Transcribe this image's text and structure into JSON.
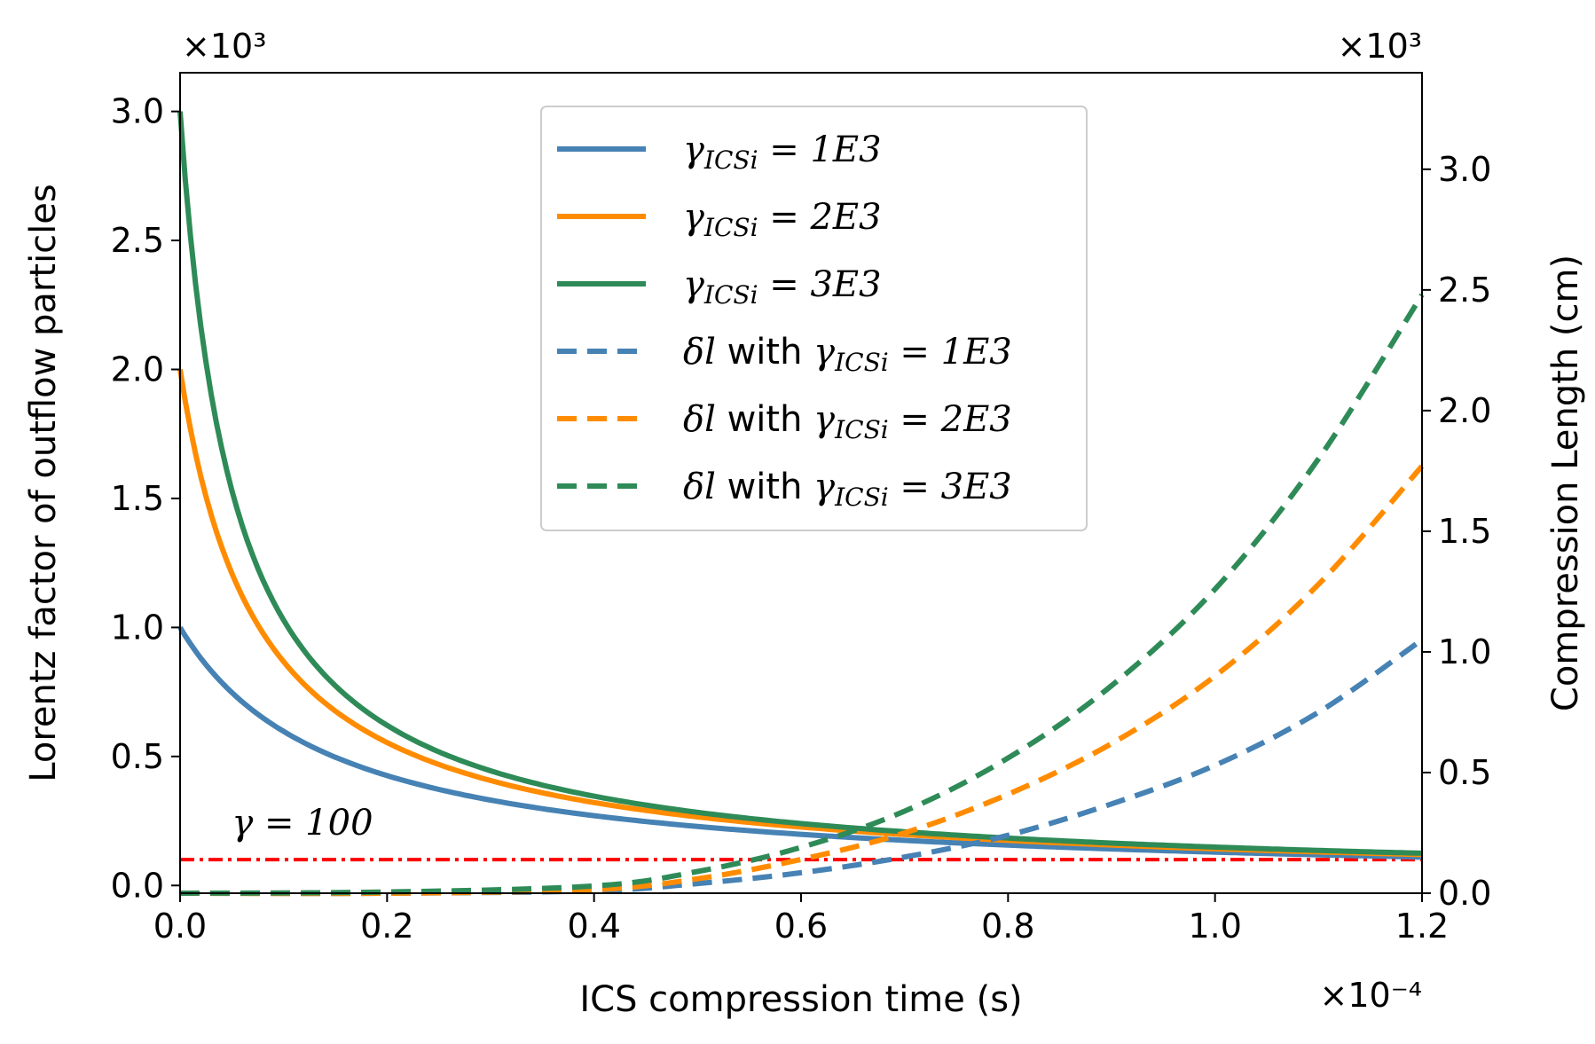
{
  "chart_data": {
    "type": "line",
    "xlabel": "ICS compression time (s)",
    "ylabel_left": "Lorentz factor of outflow particles",
    "ylabel_right": "Compression Length (cm)",
    "x_multiplier": "×10⁻⁴",
    "y_left_multiplier": "×10³",
    "y_right_multiplier": "×10³",
    "xlim": [
      0,
      1.2
    ],
    "ylim_left": [
      -0.03,
      3.15
    ],
    "ylim_right": [
      0,
      3.4
    ],
    "x_ticks": [
      "0.0",
      "0.2",
      "0.4",
      "0.6",
      "0.8",
      "1.0",
      "1.2"
    ],
    "y_left_ticks": [
      "0.0",
      "0.5",
      "1.0",
      "1.5",
      "2.0",
      "2.5",
      "3.0"
    ],
    "y_right_ticks": [
      "0.0",
      "0.5",
      "1.0",
      "1.5",
      "2.0",
      "2.5",
      "3.0"
    ],
    "reference_line": {
      "value": 0.1,
      "label": "γ = 100",
      "color": "#ff0000"
    },
    "series": [
      {
        "name": "γICSi = 1E3",
        "axis": "left",
        "style": "solid",
        "color": "#4682b4",
        "gamma0": 1.0,
        "x": [
          0,
          0.05,
          0.1,
          0.2,
          0.3,
          0.4,
          0.5,
          0.6,
          0.7,
          0.8,
          0.9,
          1.0,
          1.1,
          1.2
        ],
        "values": [
          1.0,
          0.66,
          0.545,
          0.44,
          0.365,
          0.305,
          0.26,
          0.225,
          0.19,
          0.165,
          0.15,
          0.13,
          0.12,
          0.11
        ]
      },
      {
        "name": "γICSi = 2E3",
        "axis": "left",
        "style": "solid",
        "color": "#ff8c00",
        "gamma0": 2.0,
        "x": [
          0,
          0.05,
          0.1,
          0.2,
          0.3,
          0.4,
          0.5,
          0.6,
          0.7,
          0.8,
          0.9,
          1.0,
          1.1,
          1.2
        ],
        "values": [
          2.0,
          1.05,
          0.78,
          0.56,
          0.42,
          0.34,
          0.285,
          0.245,
          0.205,
          0.18,
          0.16,
          0.14,
          0.125,
          0.12
        ]
      },
      {
        "name": "γICSi = 3E3",
        "axis": "left",
        "style": "solid",
        "color": "#2e8b57",
        "gamma0": 3.0,
        "x": [
          0,
          0.05,
          0.1,
          0.2,
          0.3,
          0.4,
          0.5,
          0.6,
          0.7,
          0.8,
          0.9,
          1.0,
          1.1,
          1.2
        ],
        "values": [
          3.0,
          1.3,
          0.87,
          0.6,
          0.44,
          0.355,
          0.295,
          0.25,
          0.215,
          0.19,
          0.17,
          0.15,
          0.135,
          0.125
        ]
      },
      {
        "name": "δl with γICSi = 1E3",
        "axis": "right",
        "style": "dashed",
        "color": "#4682b4",
        "x": [
          0,
          0.2,
          0.4,
          0.5,
          0.6,
          0.7,
          0.8,
          0.9,
          1.0,
          1.1,
          1.2
        ],
        "values": [
          0.0,
          0.0,
          0.01,
          0.04,
          0.085,
          0.15,
          0.24,
          0.37,
          0.53,
          0.75,
          1.05
        ]
      },
      {
        "name": "δl with γICSi = 2E3",
        "axis": "right",
        "style": "dashed",
        "color": "#ff8c00",
        "x": [
          0,
          0.2,
          0.4,
          0.5,
          0.6,
          0.7,
          0.8,
          0.9,
          1.0,
          1.1,
          1.2
        ],
        "values": [
          0.0,
          0.0,
          0.015,
          0.06,
          0.14,
          0.25,
          0.41,
          0.62,
          0.9,
          1.28,
          1.77
        ]
      },
      {
        "name": "δl with γICSi = 3E3",
        "axis": "right",
        "style": "dashed",
        "color": "#2e8b57",
        "x": [
          0,
          0.2,
          0.4,
          0.5,
          0.6,
          0.7,
          0.8,
          0.9,
          1.0,
          1.1,
          1.2
        ],
        "values": [
          0.0,
          0.005,
          0.03,
          0.09,
          0.19,
          0.34,
          0.56,
          0.86,
          1.26,
          1.8,
          2.48
        ]
      }
    ],
    "legend": {
      "location": "upper center",
      "entries": [
        {
          "prefix": "",
          "gamma": "γ",
          "sub": "ICSi",
          "suffix": " = 1E3"
        },
        {
          "prefix": "",
          "gamma": "γ",
          "sub": "ICSi",
          "suffix": " = 2E3"
        },
        {
          "prefix": "",
          "gamma": "γ",
          "sub": "ICSi",
          "suffix": " = 3E3"
        },
        {
          "prefix": "δl with ",
          "gamma": "γ",
          "sub": "ICSi",
          "suffix": " = 1E3"
        },
        {
          "prefix": "δl with ",
          "gamma": "γ",
          "sub": "ICSi",
          "suffix": " = 2E3"
        },
        {
          "prefix": "δl with ",
          "gamma": "γ",
          "sub": "ICSi",
          "suffix": " = 3E3"
        }
      ]
    }
  }
}
